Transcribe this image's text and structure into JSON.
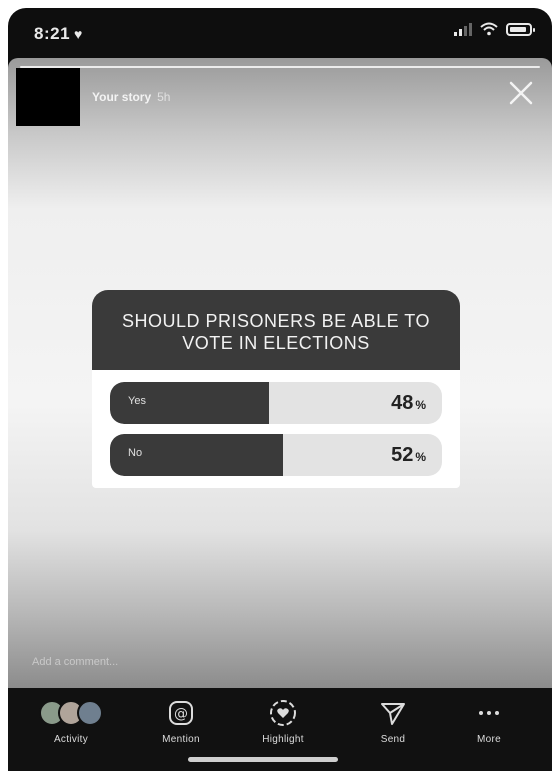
{
  "status_bar": {
    "time": "8:21",
    "heart": "♥"
  },
  "story": {
    "title": "Your story",
    "time_ago": "5h"
  },
  "poll": {
    "question": "SHOULD PRISONERS BE ABLE TO VOTE IN ELECTIONS",
    "options": [
      {
        "label": "Yes",
        "percent": 48,
        "pct_sign": "%"
      },
      {
        "label": "No",
        "percent": 52,
        "pct_sign": "%"
      }
    ]
  },
  "comment_placeholder": "Add a comment...",
  "actions": [
    {
      "label": "Activity",
      "icon": "activity-avatars-icon"
    },
    {
      "label": "Mention",
      "icon": "at-sign-icon"
    },
    {
      "label": "Highlight",
      "icon": "highlight-heart-icon"
    },
    {
      "label": "Send",
      "icon": "send-icon"
    },
    {
      "label": "More",
      "icon": "more-dots-icon"
    }
  ],
  "colors": {
    "poll_dark": "#3a3a3a",
    "poll_light": "#e3e3e3",
    "bar_background": "#111111"
  }
}
